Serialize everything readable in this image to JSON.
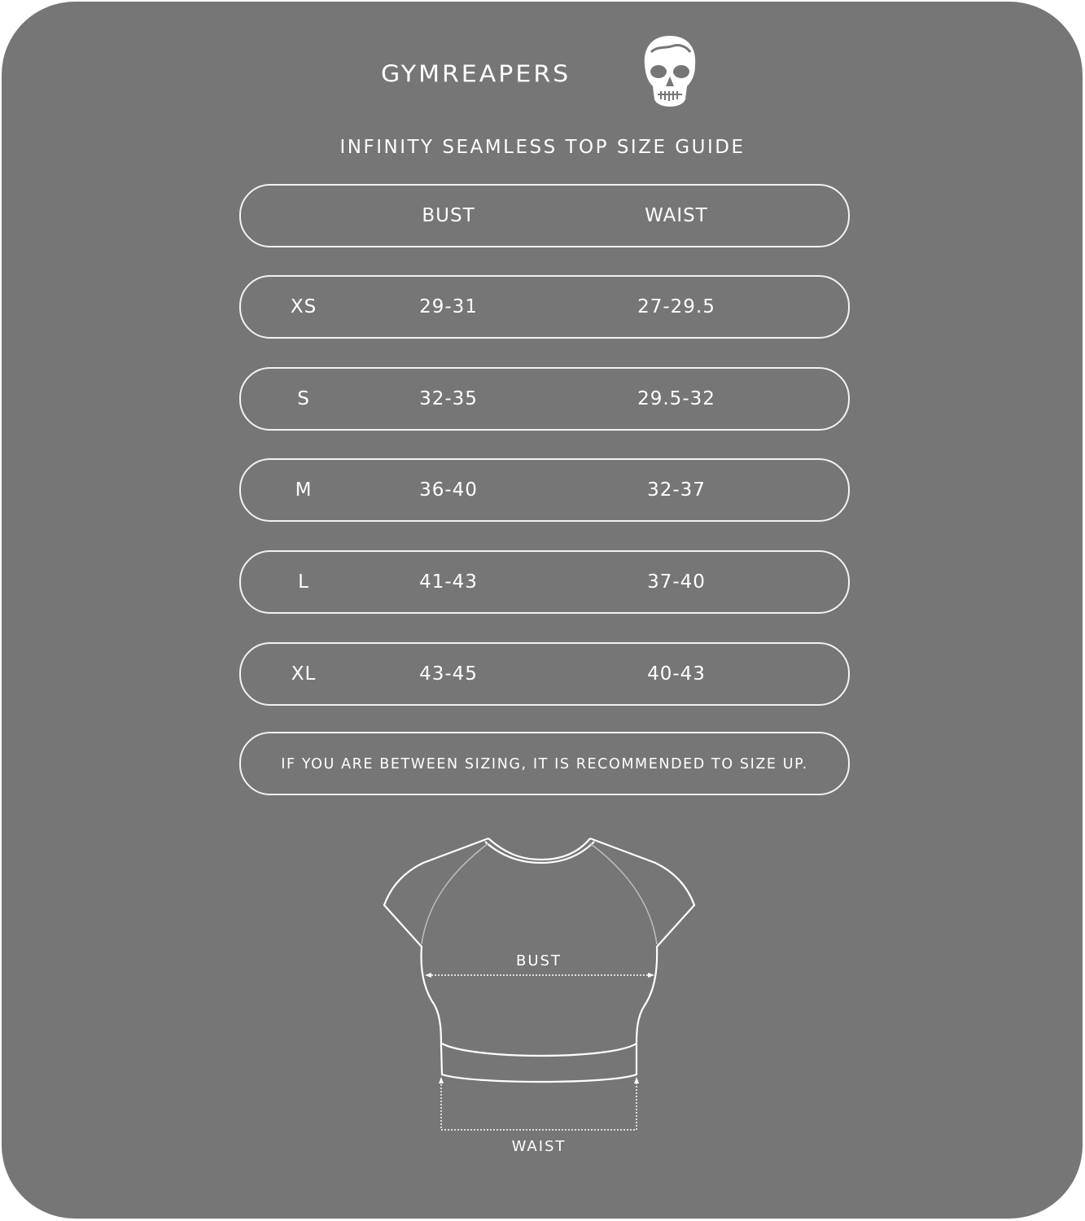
{
  "brand": {
    "name": "GYMREAPERS",
    "logo_icon": "skull-icon"
  },
  "title": "INFINITY SEAMLESS TOP SIZE GUIDE",
  "table": {
    "headers": [
      "",
      "BUST",
      "WAIST"
    ],
    "rows": [
      [
        "XS",
        "29-31",
        "27-29.5"
      ],
      [
        "S",
        "32-35",
        "29.5-32"
      ],
      [
        "M",
        "36-40",
        "32-37"
      ],
      [
        "L",
        "41-43",
        "37-40"
      ],
      [
        "XL",
        "43-45",
        "40-43"
      ]
    ]
  },
  "note": "IF YOU ARE BETWEEN SIZING, IT IS RECOMMENDED TO SIZE UP.",
  "diagram": {
    "bust_label": "BUST",
    "waist_label": "WAIST"
  },
  "colors": {
    "background": "#767676",
    "foreground": "#ffffff"
  }
}
